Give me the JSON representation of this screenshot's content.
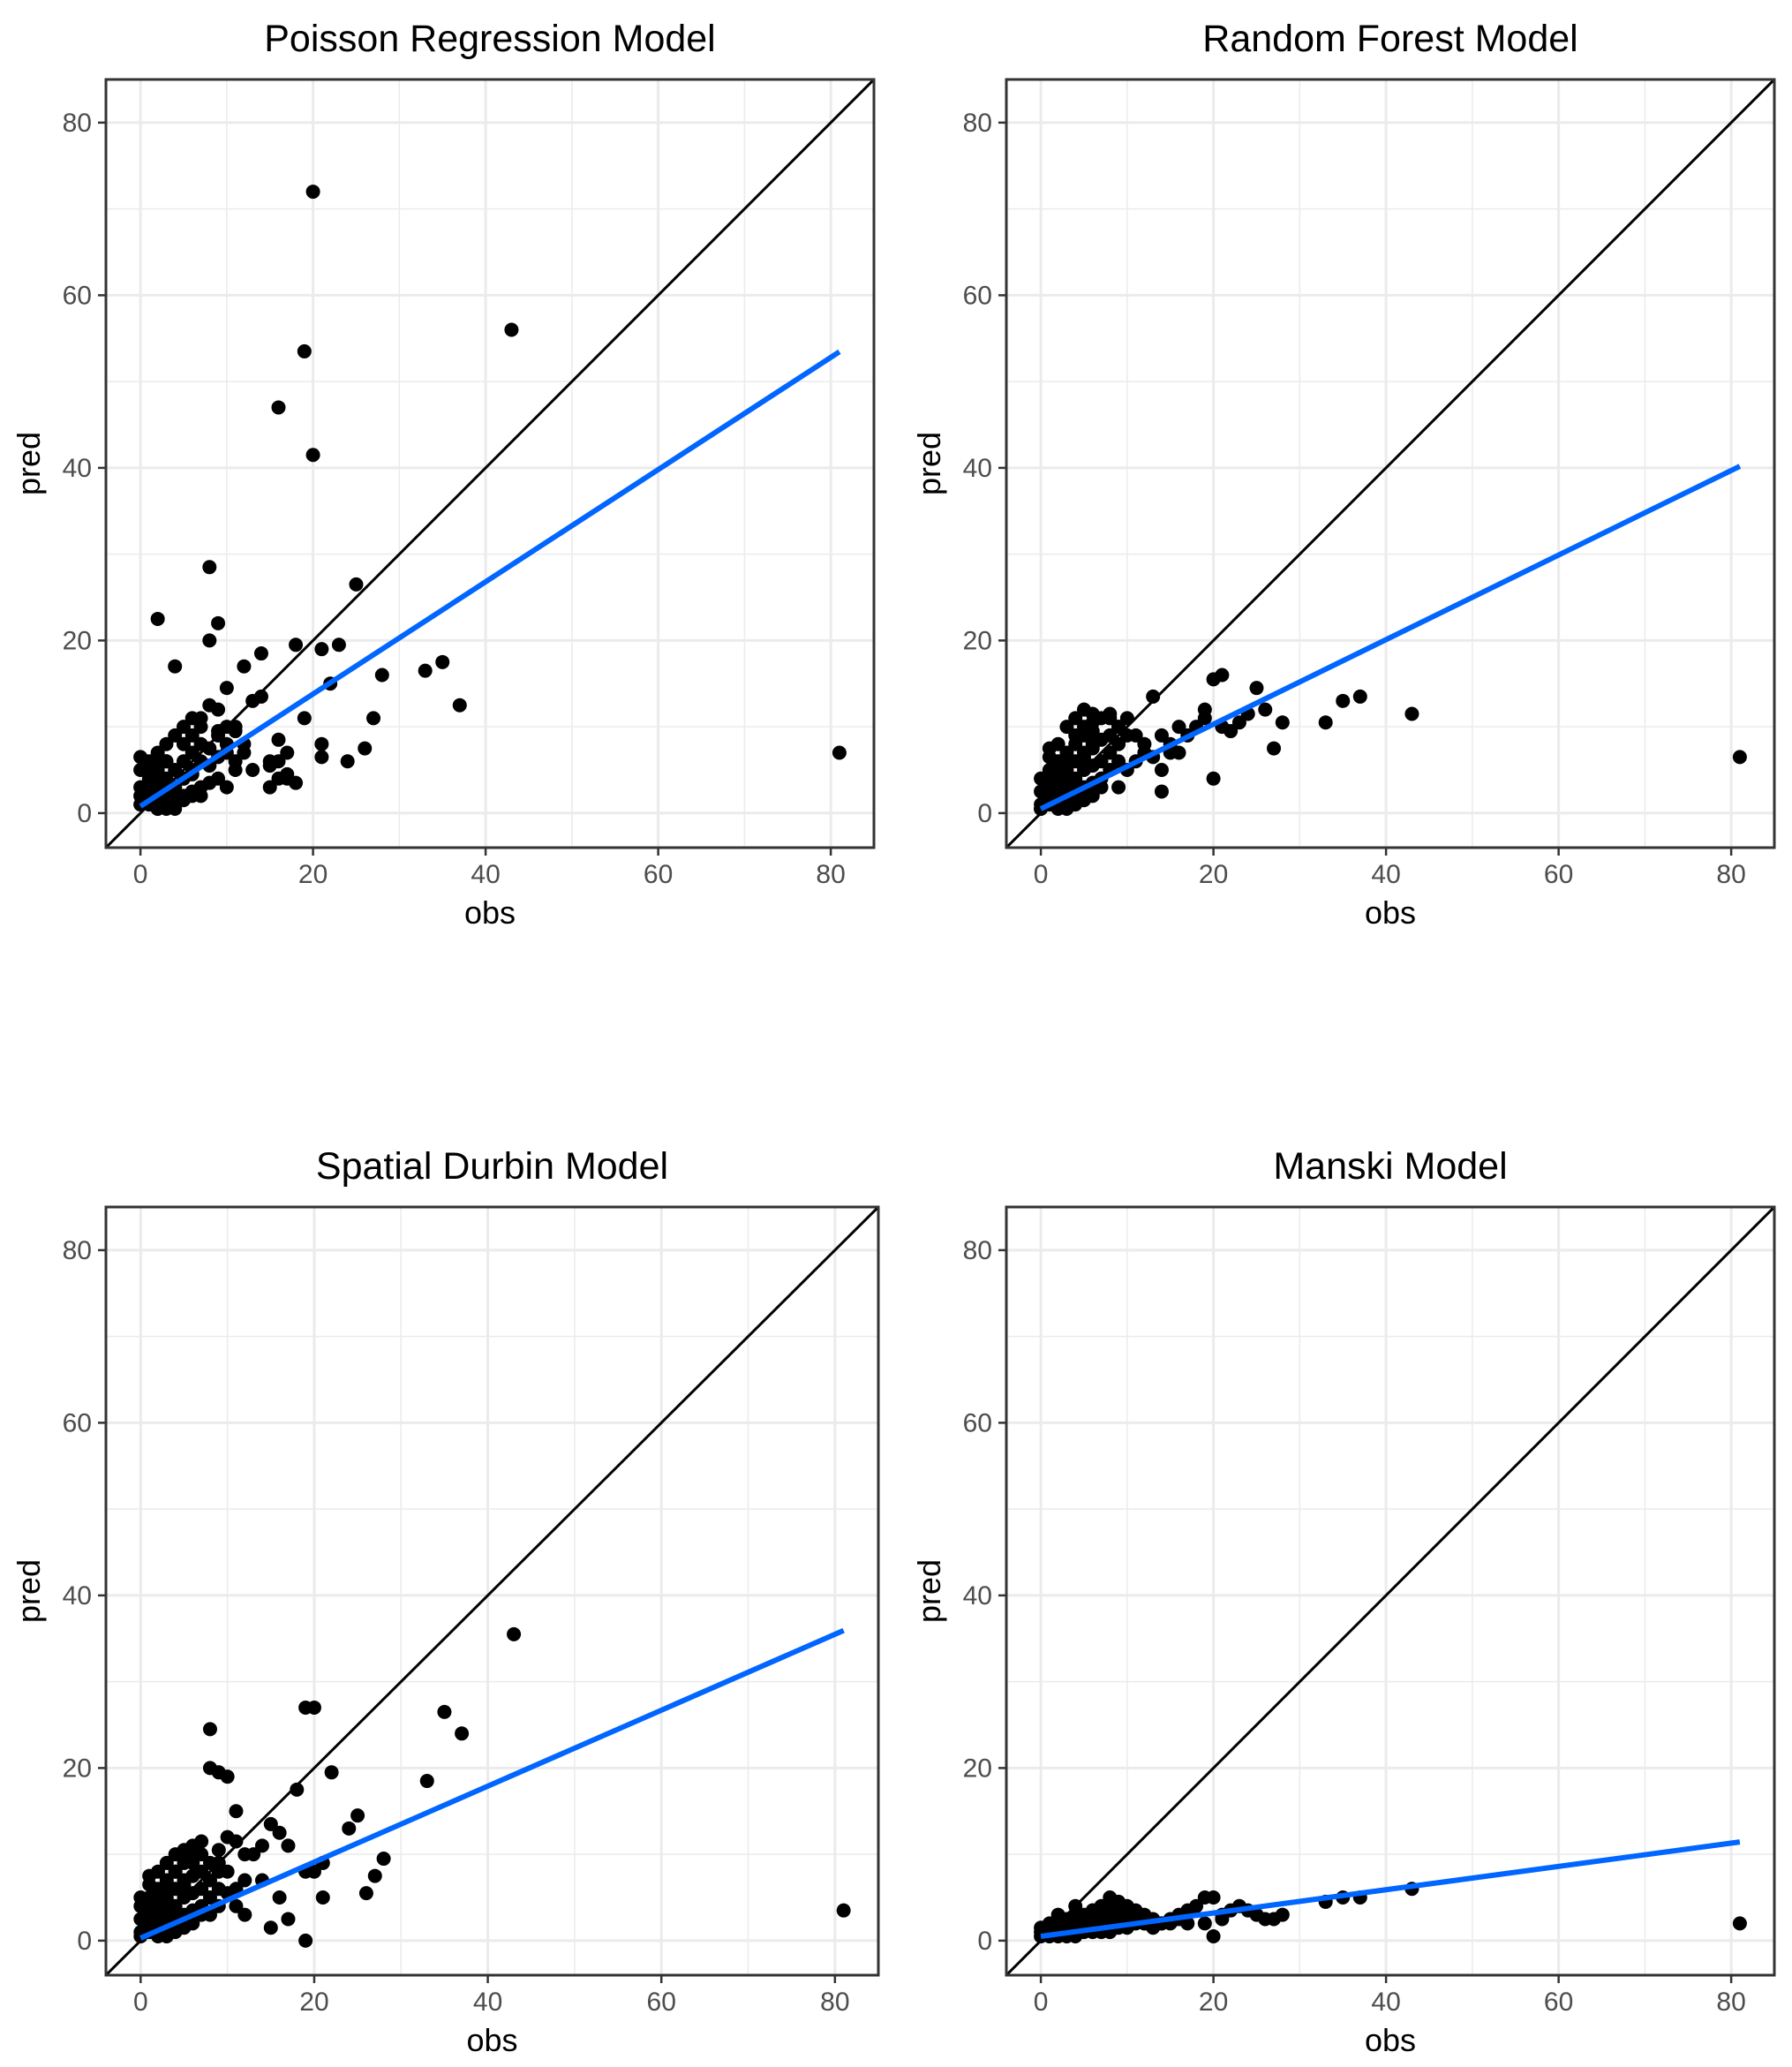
{
  "colors": {
    "background": "#ffffff",
    "grid": "#ebebeb",
    "frame": "#333333",
    "points": "#000000",
    "identity_line": "#000000",
    "fit_line": "#0066ff",
    "tick_text": "#4d4d4d"
  },
  "chart_data": [
    {
      "type": "scatter",
      "title": "Poisson Regression Model",
      "xlabel": "obs",
      "ylabel": "pred",
      "xlim": [
        -4,
        85
      ],
      "ylim": [
        -4,
        85
      ],
      "xticks": [
        0,
        20,
        40,
        60,
        80
      ],
      "yticks": [
        0,
        20,
        40,
        60,
        80
      ],
      "grid": true,
      "identity_line": true,
      "fit": {
        "intercept": 0.8,
        "slope": 0.65,
        "x_range": [
          0,
          81
        ]
      },
      "x": [
        20,
        43,
        19,
        16,
        20,
        8,
        25,
        2,
        9,
        8,
        4,
        12,
        14,
        18,
        21,
        23,
        22,
        28,
        33,
        35,
        37,
        19,
        27,
        24,
        26,
        21,
        21,
        16,
        15,
        17,
        81,
        10,
        11,
        12,
        13,
        14,
        15,
        16,
        17,
        18,
        11,
        13,
        15,
        9,
        10,
        11,
        12,
        7,
        9,
        10,
        11,
        16,
        17,
        0,
        0,
        0,
        0,
        1,
        1,
        1,
        1,
        1,
        2,
        2,
        2,
        2,
        2,
        3,
        3,
        3,
        3,
        3,
        4,
        4,
        4,
        4,
        5,
        5,
        5,
        5,
        5,
        6,
        6,
        6,
        6,
        6,
        7,
        7,
        7,
        7,
        8,
        8,
        8,
        8,
        9,
        9,
        9,
        10,
        10,
        2,
        3,
        4,
        5,
        6,
        7,
        3,
        1,
        2,
        4,
        5,
        6,
        1,
        0,
        2,
        3,
        4,
        1,
        2
      ],
      "y": [
        72,
        56,
        53.5,
        47,
        41.5,
        28.5,
        26.5,
        22.5,
        22,
        20,
        17,
        17,
        18.5,
        19.5,
        19,
        19.5,
        15,
        16,
        16.5,
        17.5,
        12.5,
        11,
        11,
        6,
        7.5,
        8,
        6.5,
        8.5,
        6,
        4.5,
        7,
        10,
        9.5,
        8,
        13,
        13.5,
        5.5,
        6,
        4,
        3.5,
        5,
        5,
        3,
        12,
        14.5,
        10,
        7,
        11,
        9,
        8,
        6,
        4,
        7,
        1,
        3,
        5,
        6.5,
        1,
        2,
        3,
        4,
        6,
        1,
        2,
        3.5,
        5,
        7,
        1,
        2.5,
        4,
        6,
        8,
        1.5,
        3,
        5,
        9,
        2,
        4,
        6,
        8,
        10,
        2.5,
        5,
        7,
        9,
        11,
        3,
        6,
        8,
        10,
        3.5,
        5.5,
        7.5,
        12.5,
        4,
        6.5,
        9.5,
        3,
        7,
        0.5,
        0.5,
        1,
        1.5,
        2,
        2,
        6,
        3,
        4.5,
        3,
        4,
        4.5,
        5,
        2,
        0.5,
        1.5,
        0.5,
        4.5,
        6
      ]
    },
    {
      "type": "scatter",
      "title": "Random Forest Model",
      "xlabel": "obs",
      "ylabel": "pred",
      "xlim": [
        -4,
        85
      ],
      "ylim": [
        -4,
        85
      ],
      "xticks": [
        0,
        20,
        40,
        60,
        80
      ],
      "yticks": [
        0,
        20,
        40,
        60,
        80
      ],
      "grid": true,
      "identity_line": true,
      "fit": {
        "intercept": 0.5,
        "slope": 0.49,
        "x_range": [
          0,
          81
        ]
      },
      "x": [
        21,
        20,
        25,
        24,
        13,
        37,
        35,
        43,
        33,
        28,
        27,
        26,
        22,
        23,
        21,
        19,
        18,
        17,
        16,
        15,
        14,
        14,
        16,
        20,
        19,
        81,
        10,
        11,
        12,
        9,
        10,
        11,
        12,
        8,
        9,
        10,
        13,
        15,
        14,
        0,
        0,
        0,
        0,
        1,
        1,
        1,
        1,
        1,
        2,
        2,
        2,
        2,
        2,
        3,
        3,
        3,
        3,
        3,
        4,
        4,
        4,
        4,
        4,
        5,
        5,
        5,
        5,
        5,
        6,
        6,
        6,
        6,
        6,
        7,
        7,
        7,
        7,
        8,
        8,
        8,
        8,
        9,
        9,
        9,
        2,
        3,
        4,
        5,
        6,
        7,
        3,
        4,
        5,
        6,
        1,
        2,
        3,
        1,
        0,
        2,
        3,
        4,
        5,
        6,
        1,
        2
      ],
      "y": [
        16,
        15.5,
        14.5,
        11.5,
        13.5,
        13.5,
        13,
        11.5,
        10.5,
        10.5,
        7.5,
        12,
        9.5,
        10.5,
        10,
        11,
        10,
        9,
        10,
        8,
        9,
        2.5,
        7,
        4,
        12,
        6.5,
        11,
        9,
        7,
        3,
        5,
        6,
        8,
        11,
        10,
        9,
        6.5,
        7,
        5,
        1,
        2.5,
        4,
        0.5,
        1,
        2,
        3,
        5,
        7.5,
        1.5,
        3,
        4.5,
        6,
        8,
        2,
        3.5,
        5,
        7,
        10,
        2.5,
        4,
        6,
        9,
        11,
        3,
        5,
        7,
        9,
        12,
        3.5,
        5.5,
        8,
        10.5,
        11.5,
        4,
        6,
        8.5,
        11,
        5,
        7,
        9,
        11.5,
        6,
        8,
        10,
        0.5,
        0.5,
        1,
        1.5,
        2,
        3,
        6,
        8,
        6.5,
        7.5,
        4,
        3.5,
        5.5,
        6.5,
        0.5,
        2.5,
        4.5,
        3.5,
        10,
        9.5,
        1.5,
        2
      ]
    },
    {
      "type": "scatter",
      "title": "Spatial Durbin Model",
      "xlabel": "obs",
      "ylabel": "pred",
      "xlim": [
        -4,
        85
      ],
      "ylim": [
        -4,
        85
      ],
      "xticks": [
        0,
        20,
        40,
        60,
        80
      ],
      "yticks": [
        0,
        20,
        40,
        60,
        80
      ],
      "grid": true,
      "identity_line": true,
      "fit": {
        "intercept": 0.3,
        "slope": 0.44,
        "x_range": [
          0,
          81
        ]
      },
      "x": [
        43,
        19,
        20,
        35,
        37,
        8,
        8,
        9,
        10,
        22,
        33,
        18,
        25,
        11,
        24,
        16,
        15,
        14,
        17,
        28,
        27,
        26,
        21,
        19,
        20,
        21,
        16,
        17,
        19,
        15,
        81,
        10,
        11,
        12,
        13,
        14,
        12,
        9,
        10,
        11,
        7,
        9,
        10,
        11,
        12,
        0,
        0,
        0,
        0,
        1,
        1,
        1,
        1,
        1,
        2,
        2,
        2,
        2,
        2,
        3,
        3,
        3,
        3,
        3,
        4,
        4,
        4,
        4,
        4,
        5,
        5,
        5,
        5,
        5,
        6,
        6,
        6,
        6,
        6,
        7,
        7,
        7,
        7,
        8,
        8,
        8,
        8,
        9,
        9,
        9,
        2,
        3,
        4,
        5,
        6,
        7,
        3,
        4,
        5,
        6,
        1,
        2,
        3,
        1,
        0,
        2,
        3,
        4,
        5,
        6,
        1,
        2
      ],
      "y": [
        35.5,
        27,
        27,
        26.5,
        24,
        24.5,
        20,
        19.5,
        19,
        19.5,
        18.5,
        17.5,
        14.5,
        15,
        13,
        12.5,
        13.5,
        11,
        11,
        9.5,
        7.5,
        5.5,
        9,
        8,
        8,
        5,
        5,
        2.5,
        0,
        1.5,
        3.5,
        12,
        11.5,
        10,
        10,
        7,
        7,
        10.5,
        5.5,
        4,
        11.5,
        9,
        8,
        6,
        3,
        1,
        2.5,
        4,
        5,
        1,
        2,
        3,
        5,
        7.5,
        1.5,
        3,
        4.5,
        6,
        8,
        2,
        3.5,
        5,
        7,
        9,
        2.5,
        4,
        6,
        8,
        10,
        3,
        5,
        7,
        9,
        10.5,
        3.5,
        5.5,
        7.5,
        9.5,
        11,
        4,
        6,
        8,
        10,
        3,
        5,
        7,
        9,
        4,
        6,
        8,
        0.5,
        0.5,
        1,
        1.5,
        2,
        3,
        6,
        8,
        6.5,
        7.5,
        4,
        3.5,
        5.5,
        6.5,
        0.5,
        2.5,
        4.5,
        3.5,
        9.5,
        9,
        1.5,
        2
      ]
    },
    {
      "type": "scatter",
      "title": "Manski Model",
      "xlabel": "obs",
      "ylabel": "pred",
      "xlim": [
        -4,
        85
      ],
      "ylim": [
        -4,
        85
      ],
      "xticks": [
        0,
        20,
        40,
        60,
        80
      ],
      "yticks": [
        0,
        20,
        40,
        60,
        80
      ],
      "grid": true,
      "identity_line": true,
      "fit": {
        "intercept": 0.5,
        "slope": 0.135,
        "x_range": [
          0,
          81
        ]
      },
      "x": [
        43,
        35,
        37,
        33,
        81,
        19,
        20,
        22,
        21,
        23,
        24,
        25,
        26,
        27,
        28,
        18,
        17,
        16,
        15,
        14,
        13,
        12,
        11,
        10,
        19,
        20,
        21,
        0,
        0,
        0,
        1,
        1,
        1,
        1,
        2,
        2,
        2,
        2,
        3,
        3,
        3,
        3,
        4,
        4,
        4,
        4,
        5,
        5,
        5,
        5,
        6,
        6,
        6,
        6,
        7,
        7,
        7,
        7,
        8,
        8,
        8,
        8,
        9,
        9,
        9,
        9,
        10,
        10,
        10,
        11,
        11,
        12,
        12,
        13,
        14,
        15,
        16,
        17,
        2,
        4,
        6,
        8,
        10
      ],
      "y": [
        6,
        5,
        5,
        4.5,
        2,
        5,
        5,
        3.5,
        3,
        4,
        3.5,
        3,
        2.5,
        2.5,
        3,
        4,
        3.5,
        3,
        2.5,
        2,
        1.5,
        2,
        3,
        2.5,
        2,
        0.5,
        2.5,
        0.5,
        1,
        1.5,
        0.5,
        1,
        1.5,
        2,
        0.5,
        1,
        1.5,
        2.5,
        0.5,
        1,
        2,
        2.5,
        0.5,
        1,
        2,
        3,
        1,
        1.5,
        2,
        3,
        1,
        2,
        3,
        3.5,
        1,
        2,
        3,
        4,
        1,
        2,
        3.5,
        5,
        1.5,
        2.5,
        3.5,
        4.5,
        1.5,
        2.5,
        4,
        2,
        3.5,
        2,
        3,
        2.5,
        2,
        2,
        2.5,
        2,
        3,
        4,
        3.5,
        4.5,
        3.5
      ]
    }
  ]
}
